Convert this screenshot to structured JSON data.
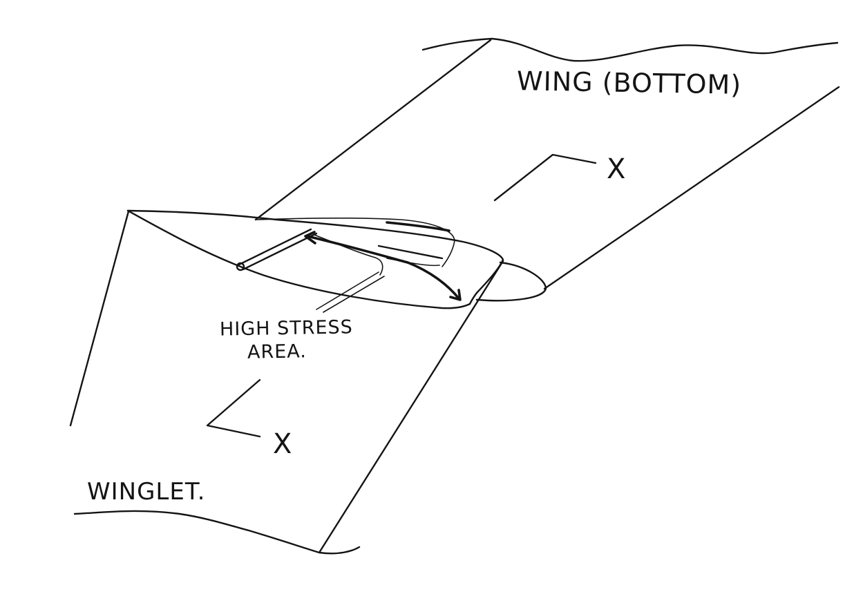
{
  "labels": {
    "wing": "WING (BOTTOM)",
    "stress_line1": "HIGH STRESS",
    "stress_line2": "AREA.",
    "winglet": "WINGLET.",
    "section_x_top": "X",
    "section_x_bottom": "X"
  },
  "colors": {
    "ink": "#141414",
    "paper": "#ffffff"
  }
}
